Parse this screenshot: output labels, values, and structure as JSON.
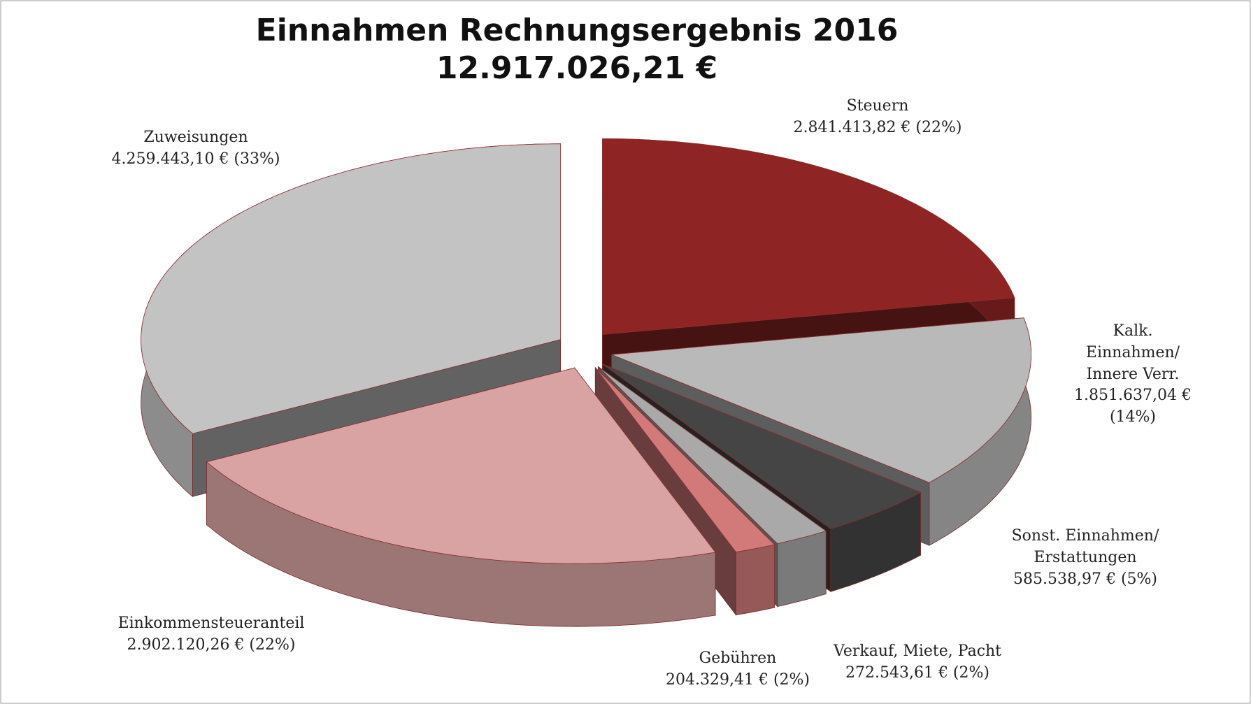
{
  "chart_data": {
    "type": "pie3d",
    "title": "Einnahmen Rechnungsergebnis 2016",
    "subtitle": "12.917.026,21 €",
    "categories": [
      "Steuern",
      "Kalk. Einnahmen/\nInnere Verr.",
      "Sonst. Einnahmen/\nErstattungen",
      "Verkauf, Miete, Pacht",
      "Gebühren",
      "Einkommensteueranteil",
      "Zuweisungen"
    ],
    "values": [
      2841413.82,
      1851637.04,
      585538.97,
      272543.61,
      204329.41,
      2902120.26,
      4259443.1
    ],
    "value_labels": [
      "2.841.413,82 € (22%)",
      "1.851.637,04 € (14%)",
      "585.538,97 €  (5%)",
      "272.543,61 €  (2%)",
      "204.329,41 €  (2%)",
      "2.902.120,26 €  (22%)",
      "4.259.443,10 €  (33%)"
    ],
    "colors": [
      "#8e2424",
      "#b9b9b9",
      "#454545",
      "#a9a9a9",
      "#d27a7a",
      "#d9a3a3",
      "#c3c3c3"
    ]
  }
}
